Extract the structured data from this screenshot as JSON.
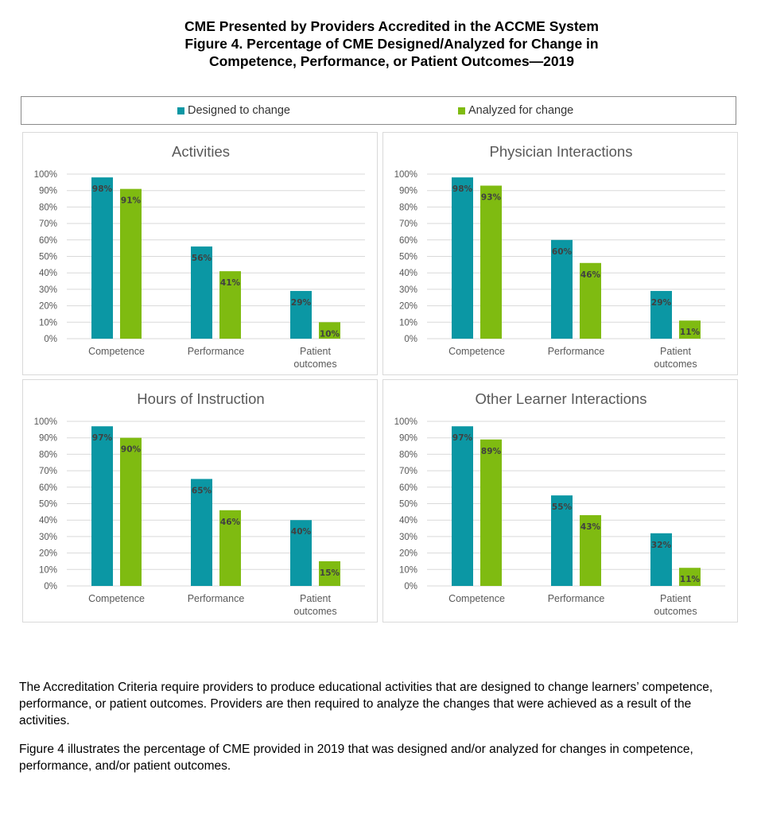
{
  "title": {
    "line1": "CME Presented by Providers Accredited in the ACCME System",
    "line2": "Figure 4. Percentage of CME Designed/Analyzed for Change in",
    "line3": "Competence, Performance, or Patient Outcomes—2019"
  },
  "legend": {
    "designed_label": "Designed to change",
    "analyzed_label": "Analyzed for change"
  },
  "colors": {
    "designed": "#0b97a4",
    "analyzed": "#7fbb11",
    "grid": "#d9d9d9",
    "axis_text": "#595959"
  },
  "chart_data": [
    {
      "type": "bar",
      "title": "Activities",
      "categories": [
        "Competence",
        "Performance",
        "Patient outcomes"
      ],
      "series": [
        {
          "name": "Designed to change",
          "values": [
            98,
            56,
            29
          ],
          "labels": [
            "98%",
            "56%",
            "29%"
          ]
        },
        {
          "name": "Analyzed for change",
          "values": [
            91,
            41,
            10
          ],
          "labels": [
            "91%",
            "41%",
            "10%"
          ]
        }
      ],
      "yticks": [
        "0%",
        "10%",
        "20%",
        "30%",
        "40%",
        "50%",
        "60%",
        "70%",
        "80%",
        "90%",
        "100%"
      ],
      "ylim": [
        0,
        100
      ]
    },
    {
      "type": "bar",
      "title": "Physician Interactions",
      "categories": [
        "Competence",
        "Performance",
        "Patient outcomes"
      ],
      "series": [
        {
          "name": "Designed to change",
          "values": [
            98,
            60,
            29
          ],
          "labels": [
            "98%",
            "60%",
            "29%"
          ]
        },
        {
          "name": "Analyzed for change",
          "values": [
            93,
            46,
            11
          ],
          "labels": [
            "93%",
            "46%",
            "11%"
          ]
        }
      ],
      "yticks": [
        "0%",
        "10%",
        "20%",
        "30%",
        "40%",
        "50%",
        "60%",
        "70%",
        "80%",
        "90%",
        "100%"
      ],
      "ylim": [
        0,
        100
      ]
    },
    {
      "type": "bar",
      "title": "Hours of Instruction",
      "categories": [
        "Competence",
        "Performance",
        "Patient outcomes"
      ],
      "series": [
        {
          "name": "Designed to change",
          "values": [
            97,
            65,
            40
          ],
          "labels": [
            "97%",
            "65%",
            "40%"
          ]
        },
        {
          "name": "Analyzed for change",
          "values": [
            90,
            46,
            15
          ],
          "labels": [
            "90%",
            "46%",
            "15%"
          ]
        }
      ],
      "yticks": [
        "0%",
        "10%",
        "20%",
        "30%",
        "40%",
        "50%",
        "60%",
        "70%",
        "80%",
        "90%",
        "100%"
      ],
      "ylim": [
        0,
        100
      ]
    },
    {
      "type": "bar",
      "title": "Other Learner Interactions",
      "categories": [
        "Competence",
        "Performance",
        "Patient outcomes"
      ],
      "series": [
        {
          "name": "Designed to change",
          "values": [
            97,
            55,
            32
          ],
          "labels": [
            "97%",
            "55%",
            "32%"
          ]
        },
        {
          "name": "Analyzed for change",
          "values": [
            89,
            43,
            11
          ],
          "labels": [
            "89%",
            "43%",
            "11%"
          ]
        }
      ],
      "yticks": [
        "0%",
        "10%",
        "20%",
        "30%",
        "40%",
        "50%",
        "60%",
        "70%",
        "80%",
        "90%",
        "100%"
      ],
      "ylim": [
        0,
        100
      ]
    }
  ],
  "description": {
    "p1": "The Accreditation Criteria require providers to produce educational activities that are designed to change learners’ competence, performance, or patient outcomes. Providers are then required to analyze the changes that were achieved as a result of the activities.",
    "p2": "Figure 4 illustrates the percentage of CME provided in 2019 that was designed and/or analyzed for changes in competence, performance, and/or patient outcomes."
  }
}
